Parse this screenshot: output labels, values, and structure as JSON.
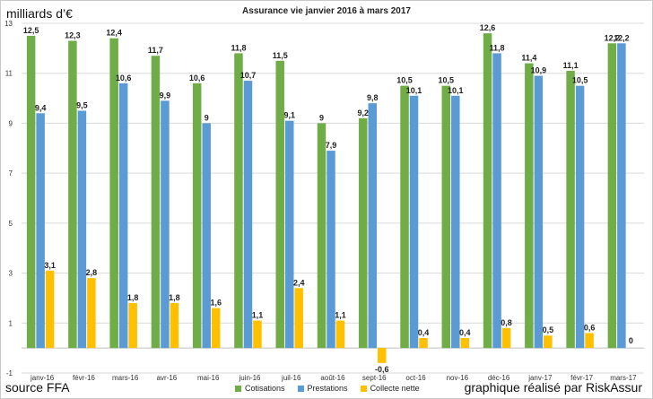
{
  "chart_data": {
    "type": "bar",
    "title": "Assurance vie janvier 2016 à mars 2017",
    "ylabel": "milliards d’€",
    "ylim": [
      -1,
      13
    ],
    "yticks": [
      -1,
      1,
      3,
      5,
      7,
      9,
      11,
      13
    ],
    "grid": true,
    "legend_position": "bottom",
    "categories": [
      "janv-16",
      "févr-16",
      "mars-16",
      "avr-16",
      "mai-16",
      "juin-16",
      "juil-16",
      "août-16",
      "sept-16",
      "oct-16",
      "nov-16",
      "déc-16",
      "janv-17",
      "févr-17",
      "mars-17"
    ],
    "series": [
      {
        "name": "Cotisations",
        "color": "#70ad47",
        "values": [
          12.5,
          12.3,
          12.4,
          11.7,
          10.6,
          11.8,
          11.5,
          9,
          9.2,
          10.5,
          10.5,
          12.6,
          11.4,
          11.1,
          12.2
        ],
        "labels": [
          "12,5",
          "12,3",
          "12,4",
          "11,7",
          "10,6",
          "11,8",
          "11,5",
          "9",
          "9,2",
          "10,5",
          "10,5",
          "12,6",
          "11,4",
          "11,1",
          "12,2"
        ]
      },
      {
        "name": "Prestations",
        "color": "#5b9bd5",
        "values": [
          9.4,
          9.5,
          10.6,
          9.9,
          9,
          10.7,
          9.1,
          7.9,
          9.8,
          10.1,
          10.1,
          11.8,
          10.9,
          10.5,
          12.2
        ],
        "labels": [
          "9,4",
          "9,5",
          "10,6",
          "9,9",
          "9",
          "10,7",
          "9,1",
          "7,9",
          "9,8",
          "10,1",
          "10,1",
          "11,8",
          "10,9",
          "10,5",
          "12,2"
        ]
      },
      {
        "name": "Collecte nette",
        "color": "#ffc000",
        "values": [
          3.1,
          2.8,
          1.8,
          1.8,
          1.6,
          1.1,
          2.4,
          1.1,
          -0.6,
          0.4,
          0.4,
          0.8,
          0.5,
          0.6,
          0
        ],
        "labels": [
          "3,1",
          "2,8",
          "1,8",
          "1,8",
          "1,6",
          "1,1",
          "2,4",
          "1,1",
          "-0,6",
          "0,4",
          "0,4",
          "0,8",
          "0,5",
          "0,6",
          "0"
        ]
      }
    ]
  },
  "footer": {
    "source": "source FFA",
    "credit": "graphique réalisé par RiskAssur"
  }
}
